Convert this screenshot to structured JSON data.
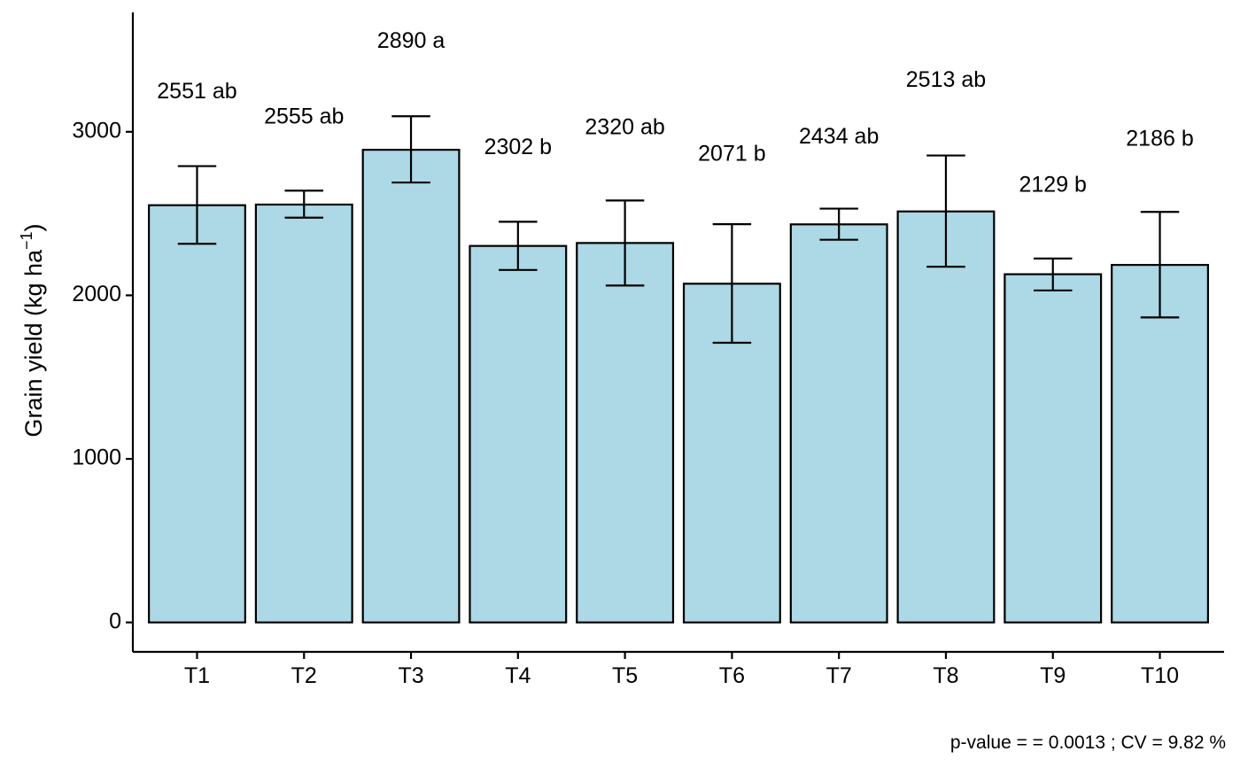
{
  "chart_data": {
    "type": "bar",
    "ylabel": "Grain yield (kg ha",
    "ylabel_sup": "−1",
    "ylabel_close": ")",
    "xlabel": "",
    "categories": [
      "T1",
      "T2",
      "T3",
      "T4",
      "T5",
      "T6",
      "T7",
      "T8",
      "T9",
      "T10"
    ],
    "values": [
      2551,
      2555,
      2890,
      2302,
      2320,
      2071,
      2434,
      2513,
      2129,
      2186
    ],
    "error_upper": [
      2790,
      2640,
      3095,
      2450,
      2580,
      2435,
      2530,
      2855,
      2225,
      2510
    ],
    "error_lower": [
      2315,
      2475,
      2690,
      2155,
      2060,
      1710,
      2340,
      2175,
      2030,
      1865
    ],
    "labels": [
      "2551 ab",
      "2555 ab",
      "2890 a",
      "2302 b",
      "2320 ab",
      "2071 b",
      "2434 ab",
      "2513 ab",
      "2129 b",
      "2186 b"
    ],
    "label_y": [
      3240,
      3085,
      3550,
      2900,
      3020,
      2860,
      2965,
      3310,
      2670,
      2950
    ],
    "yticks": [
      0,
      1000,
      2000,
      3000
    ],
    "ytick_labels": [
      "0",
      "1000",
      "2000",
      "3000"
    ],
    "ylim": [
      -180,
      3730
    ],
    "grid": false,
    "bar_color": "#add8e6",
    "bar_border_color": "#000000",
    "caption": "p-value =  = 0.0013 ; CV =  9.82 %"
  }
}
